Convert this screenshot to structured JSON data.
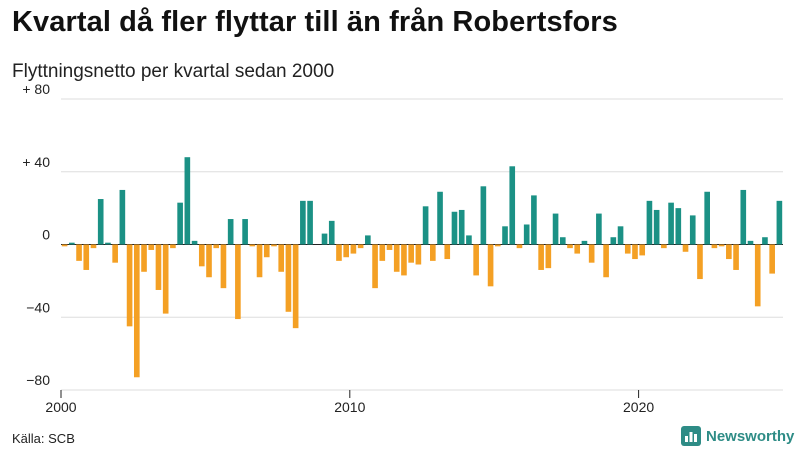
{
  "title": "Kvartal då fler flyttar till än från Robertsfors",
  "subtitle": "Flyttningsnetto per kvartal sedan 2000",
  "source": "Källa: SCB",
  "brand": "Newsworthy",
  "colors": {
    "positive": "#1b9185",
    "negative": "#f4a024",
    "grid": "#dddddd",
    "axis": "#222222"
  },
  "chart_data": {
    "type": "bar",
    "title": "Flyttningsnetto per kvartal sedan 2000",
    "xlabel": "",
    "ylabel": "",
    "start_year": 2000,
    "start_quarter": 1,
    "ylim": [
      -80,
      80
    ],
    "yticks": [
      80,
      40,
      0,
      -40,
      -80
    ],
    "ytick_labels": [
      "+ 80",
      "+ 40",
      "0",
      "−40",
      "−80"
    ],
    "xticks": [
      2000,
      2010,
      2020
    ],
    "xtick_labels": [
      "2000",
      "2010",
      "2020"
    ],
    "values": [
      -1,
      1,
      -9,
      -14,
      -2,
      25,
      1,
      -10,
      30,
      -45,
      -73,
      -15,
      -3,
      -25,
      -38,
      -2,
      23,
      48,
      2,
      -12,
      -18,
      -2,
      -24,
      14,
      -41,
      14,
      -1,
      -18,
      -7,
      -1,
      -15,
      -37,
      -46,
      24,
      24,
      0,
      6,
      13,
      -9,
      -7,
      -5,
      -2,
      5,
      -24,
      -9,
      -3,
      -15,
      -17,
      -10,
      -11,
      21,
      -9,
      29,
      -8,
      18,
      19,
      5,
      -17,
      32,
      -23,
      -1,
      10,
      43,
      -2,
      11,
      27,
      -14,
      -13,
      17,
      4,
      -2,
      -5,
      2,
      -10,
      17,
      -18,
      4,
      10,
      -5,
      -8,
      -6,
      24,
      19,
      -2,
      23,
      20,
      -4,
      16,
      -19,
      29,
      -2,
      -1,
      -8,
      -14,
      30,
      2,
      -34,
      4,
      -16,
      24
    ]
  }
}
